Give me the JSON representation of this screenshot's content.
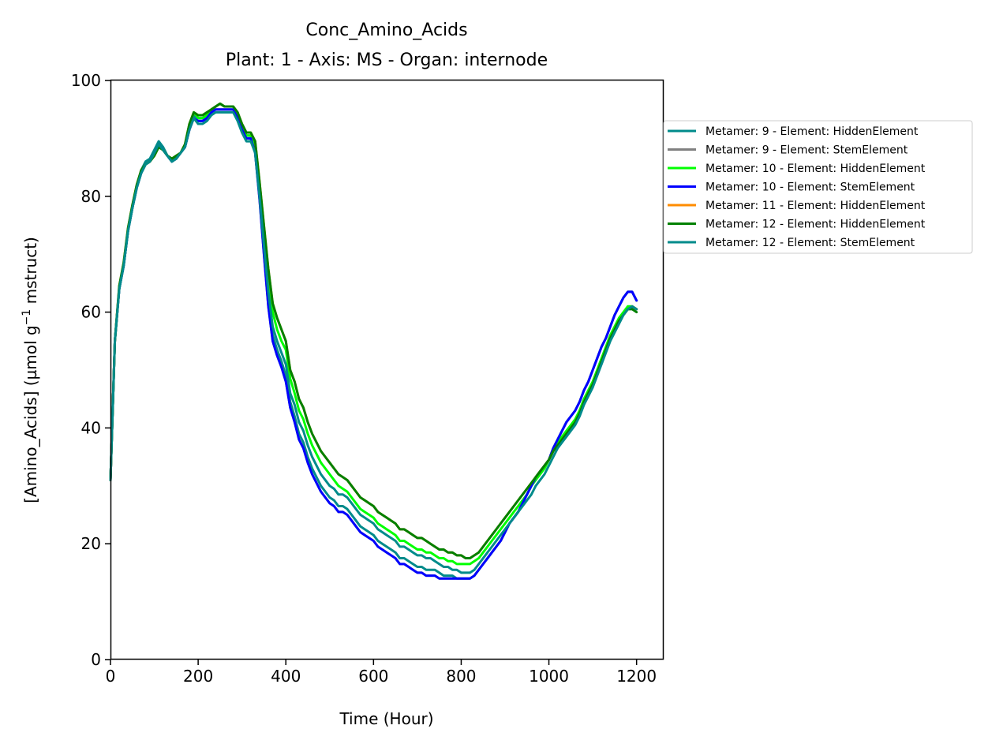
{
  "chart_data": {
    "type": "line",
    "title": "Conc_Amino_Acids",
    "subtitle": "Plant: 1 - Axis: MS - Organ: internode",
    "xlabel": "Time (Hour)",
    "ylabel_main": "[Amino_Acids] (µmol g",
    "ylabel_sup": "−1",
    "ylabel_tail": " mstruct)",
    "xlim": [
      0,
      1260
    ],
    "ylim": [
      0,
      100
    ],
    "xticks": [
      0,
      200,
      400,
      600,
      800,
      1000,
      1200
    ],
    "xtick_labels": [
      "0",
      "200",
      "400",
      "600",
      "800",
      "1000",
      "1200"
    ],
    "yticks": [
      0,
      20,
      40,
      60,
      80,
      100
    ],
    "ytick_labels": [
      "0",
      "20",
      "40",
      "60",
      "80",
      "100"
    ],
    "grid": false,
    "legend_position": "outside-right",
    "x": [
      0,
      10,
      20,
      30,
      40,
      50,
      60,
      70,
      80,
      90,
      100,
      110,
      120,
      130,
      140,
      150,
      160,
      170,
      180,
      190,
      200,
      210,
      220,
      230,
      240,
      250,
      260,
      270,
      280,
      290,
      300,
      310,
      320,
      330,
      340,
      350,
      360,
      370,
      380,
      390,
      400,
      410,
      420,
      430,
      440,
      450,
      460,
      470,
      480,
      490,
      500,
      510,
      520,
      530,
      540,
      550,
      560,
      570,
      580,
      590,
      600,
      610,
      620,
      630,
      640,
      650,
      660,
      670,
      680,
      690,
      700,
      710,
      720,
      730,
      740,
      750,
      760,
      770,
      780,
      790,
      800,
      810,
      820,
      830,
      840,
      850,
      860,
      870,
      880,
      890,
      900,
      910,
      920,
      930,
      940,
      950,
      960,
      970,
      980,
      990,
      1000,
      1010,
      1020,
      1030,
      1040,
      1050,
      1060,
      1070,
      1080,
      1090,
      1100,
      1110,
      1120,
      1130,
      1140,
      1150,
      1160,
      1170,
      1180,
      1190,
      1200
    ],
    "series": [
      {
        "name": "Metamer: 9 - Element: HiddenElement",
        "color": "#008B8B",
        "values": [
          31.0,
          55.0,
          64.0,
          68.0,
          74.0,
          78.0,
          81.5,
          84.5,
          86.0,
          86.5,
          88.0,
          89.5,
          88.5,
          87.0,
          86.0,
          86.5,
          87.5,
          88.5,
          91.5,
          94.0,
          93.5,
          93.5,
          94.0,
          95.0,
          95.5,
          96.0,
          95.5,
          95.5,
          95.5,
          94.0,
          92.0,
          90.5,
          90.5,
          88.0,
          80.0,
          71.0,
          62.0,
          56.0,
          53.5,
          51.5,
          49.0,
          44.5,
          42.0,
          39.0,
          37.5,
          35.0,
          33.0,
          31.5,
          30.0,
          29.0,
          28.0,
          27.5,
          26.5,
          26.5,
          26.0,
          25.0,
          24.0,
          23.0,
          22.5,
          22.0,
          21.5,
          20.5,
          20.0,
          19.5,
          19.0,
          18.5,
          17.5,
          17.5,
          17.0,
          16.5,
          16.0,
          16.0,
          15.5,
          15.5,
          15.5,
          15.0,
          14.5,
          14.5,
          14.5,
          14.0,
          14.0,
          14.0,
          14.0,
          14.5,
          15.5,
          16.5,
          17.5,
          18.5,
          19.5,
          20.5,
          22.0,
          23.5,
          24.5,
          25.5,
          27.0,
          28.5,
          30.0,
          31.5,
          32.5,
          33.5,
          34.5,
          36.5,
          38.0,
          39.5,
          41.0,
          42.0,
          43.0,
          44.5,
          46.5,
          48.0,
          50.0,
          52.0,
          54.0,
          55.5,
          57.5,
          59.5,
          61.0,
          62.5,
          63.5,
          63.5,
          62.0
        ]
      },
      {
        "name": "Metamer: 9 - Element: StemElement",
        "color": "#808080",
        "values": [
          31.0,
          55.0,
          64.0,
          68.0,
          74.0,
          78.0,
          81.5,
          84.0,
          85.5,
          86.0,
          87.5,
          89.0,
          88.0,
          87.0,
          86.0,
          86.5,
          87.5,
          88.5,
          91.5,
          93.5,
          93.0,
          93.0,
          93.5,
          94.5,
          95.0,
          95.0,
          95.0,
          95.0,
          95.0,
          93.5,
          91.5,
          90.0,
          90.0,
          87.5,
          79.5,
          70.0,
          61.0,
          55.0,
          52.5,
          50.5,
          48.0,
          43.5,
          41.0,
          38.0,
          36.5,
          34.0,
          32.0,
          30.5,
          29.0,
          28.0,
          27.0,
          26.5,
          25.5,
          25.5,
          25.0,
          24.0,
          23.0,
          22.0,
          21.5,
          21.0,
          20.5,
          19.5,
          19.0,
          18.5,
          18.0,
          17.5,
          16.5,
          16.5,
          16.0,
          15.5,
          15.0,
          15.0,
          14.5,
          14.5,
          14.5,
          14.0,
          14.0,
          14.0,
          14.0,
          14.0,
          14.0,
          14.0,
          14.0,
          14.5,
          15.5,
          16.5,
          17.5,
          18.5,
          19.5,
          20.5,
          22.0,
          23.5,
          24.5,
          25.5,
          27.0,
          28.5,
          30.0,
          31.5,
          32.5,
          33.5,
          34.5,
          36.5,
          38.0,
          39.5,
          41.0,
          42.0,
          43.0,
          44.5,
          46.5,
          48.0,
          50.0,
          52.0,
          54.0,
          55.5,
          57.5,
          59.5,
          61.0,
          62.5,
          63.5,
          63.5,
          62.0
        ]
      },
      {
        "name": "Metamer: 10 - Element: HiddenElement",
        "color": "#00FF00",
        "values": [
          31.0,
          55.0,
          64.0,
          68.0,
          74.0,
          78.0,
          81.5,
          84.0,
          85.5,
          86.0,
          87.5,
          89.0,
          88.0,
          87.0,
          86.0,
          86.5,
          87.5,
          88.5,
          92.0,
          94.5,
          93.5,
          93.5,
          94.0,
          95.0,
          95.5,
          96.0,
          95.5,
          95.5,
          95.5,
          94.0,
          92.0,
          90.5,
          90.5,
          88.5,
          81.5,
          73.5,
          66.0,
          60.0,
          57.0,
          55.0,
          53.5,
          48.5,
          46.0,
          43.0,
          41.5,
          39.0,
          37.0,
          35.5,
          34.0,
          33.0,
          32.0,
          31.0,
          30.0,
          29.5,
          29.0,
          28.0,
          27.0,
          26.0,
          25.5,
          25.0,
          24.5,
          23.5,
          23.0,
          22.5,
          22.0,
          21.5,
          20.5,
          20.5,
          20.0,
          19.5,
          19.0,
          19.0,
          18.5,
          18.5,
          18.0,
          17.5,
          17.5,
          17.0,
          17.0,
          16.5,
          16.5,
          16.5,
          16.5,
          17.0,
          17.5,
          18.5,
          19.5,
          20.5,
          21.5,
          22.5,
          23.5,
          24.5,
          25.5,
          26.5,
          27.5,
          28.5,
          30.0,
          31.0,
          32.0,
          33.0,
          34.5,
          36.0,
          37.5,
          38.5,
          39.5,
          40.5,
          41.5,
          43.0,
          45.0,
          46.5,
          48.0,
          50.0,
          52.0,
          54.0,
          56.0,
          57.5,
          59.0,
          60.0,
          61.0,
          61.0,
          60.5
        ]
      },
      {
        "name": "Metamer: 10 - Element: StemElement",
        "color": "#0000FF",
        "values": [
          31.0,
          55.0,
          64.0,
          68.0,
          74.0,
          78.0,
          81.5,
          84.0,
          85.5,
          86.0,
          87.5,
          89.0,
          88.0,
          87.0,
          86.0,
          86.5,
          87.5,
          88.5,
          91.5,
          93.5,
          93.0,
          93.0,
          93.5,
          94.5,
          95.0,
          95.0,
          95.0,
          95.0,
          95.0,
          93.5,
          91.5,
          90.0,
          90.0,
          87.5,
          79.5,
          70.0,
          61.0,
          55.0,
          52.5,
          50.5,
          48.0,
          43.5,
          41.0,
          38.0,
          36.5,
          34.0,
          32.0,
          30.5,
          29.0,
          28.0,
          27.0,
          26.5,
          25.5,
          25.5,
          25.0,
          24.0,
          23.0,
          22.0,
          21.5,
          21.0,
          20.5,
          19.5,
          19.0,
          18.5,
          18.0,
          17.5,
          16.5,
          16.5,
          16.0,
          15.5,
          15.0,
          15.0,
          14.5,
          14.5,
          14.5,
          14.0,
          14.0,
          14.0,
          14.0,
          14.0,
          14.0,
          14.0,
          14.0,
          14.5,
          15.5,
          16.5,
          17.5,
          18.5,
          19.5,
          20.5,
          22.0,
          23.5,
          24.5,
          25.5,
          27.0,
          28.5,
          30.0,
          31.5,
          32.5,
          33.5,
          34.5,
          36.5,
          38.0,
          39.5,
          41.0,
          42.0,
          43.0,
          44.5,
          46.5,
          48.0,
          50.0,
          52.0,
          54.0,
          55.5,
          57.5,
          59.5,
          61.0,
          62.5,
          63.5,
          63.5,
          62.0
        ]
      },
      {
        "name": "Metamer: 11 - Element: HiddenElement",
        "color": "#FF8C00",
        "values": [
          31.0,
          55.0,
          64.5,
          68.5,
          74.5,
          78.5,
          82.0,
          84.5,
          85.5,
          86.0,
          87.0,
          88.5,
          88.0,
          87.0,
          86.5,
          87.0,
          87.5,
          89.0,
          92.5,
          94.5,
          94.0,
          94.0,
          94.5,
          95.0,
          95.5,
          96.0,
          95.5,
          95.5,
          95.5,
          94.5,
          92.5,
          91.0,
          91.0,
          89.5,
          82.5,
          75.0,
          67.5,
          61.5,
          59.0,
          57.0,
          55.0,
          50.0,
          48.0,
          45.0,
          43.5,
          41.0,
          39.0,
          37.5,
          36.0,
          35.0,
          34.0,
          33.0,
          32.0,
          31.5,
          31.0,
          30.0,
          29.0,
          28.0,
          27.5,
          27.0,
          26.5,
          25.5,
          25.0,
          24.5,
          24.0,
          23.5,
          22.5,
          22.5,
          22.0,
          21.5,
          21.0,
          21.0,
          20.5,
          20.0,
          19.5,
          19.0,
          19.0,
          18.5,
          18.5,
          18.0,
          18.0,
          17.5,
          17.5,
          18.0,
          18.5,
          19.5,
          20.5,
          21.5,
          22.5,
          23.5,
          24.5,
          25.5,
          26.5,
          27.5,
          28.5,
          29.5,
          30.5,
          31.5,
          32.5,
          33.5,
          34.5,
          36.0,
          37.0,
          38.0,
          39.0,
          40.0,
          41.0,
          42.5,
          44.5,
          46.0,
          47.5,
          49.5,
          51.5,
          53.5,
          55.5,
          57.0,
          58.5,
          59.5,
          60.5,
          61.0,
          60.5
        ]
      },
      {
        "name": "Metamer: 12 - Element: HiddenElement",
        "color": "#008000",
        "values": [
          31.0,
          55.0,
          64.5,
          68.5,
          74.5,
          78.5,
          82.0,
          84.5,
          85.5,
          86.0,
          87.0,
          88.5,
          88.0,
          87.0,
          86.5,
          87.0,
          87.5,
          89.0,
          92.5,
          94.5,
          94.0,
          94.0,
          94.5,
          95.0,
          95.5,
          96.0,
          95.5,
          95.5,
          95.5,
          94.5,
          92.5,
          91.0,
          91.0,
          89.5,
          82.5,
          75.0,
          67.5,
          61.5,
          59.0,
          57.0,
          55.0,
          50.0,
          48.0,
          45.0,
          43.5,
          41.0,
          39.0,
          37.5,
          36.0,
          35.0,
          34.0,
          33.0,
          32.0,
          31.5,
          31.0,
          30.0,
          29.0,
          28.0,
          27.5,
          27.0,
          26.5,
          25.5,
          25.0,
          24.5,
          24.0,
          23.5,
          22.5,
          22.5,
          22.0,
          21.5,
          21.0,
          21.0,
          20.5,
          20.0,
          19.5,
          19.0,
          19.0,
          18.5,
          18.5,
          18.0,
          18.0,
          17.5,
          17.5,
          18.0,
          18.5,
          19.5,
          20.5,
          21.5,
          22.5,
          23.5,
          24.5,
          25.5,
          26.5,
          27.5,
          28.5,
          29.5,
          30.5,
          31.5,
          32.5,
          33.5,
          34.5,
          36.0,
          37.0,
          38.0,
          39.0,
          40.0,
          41.0,
          42.5,
          44.5,
          46.0,
          47.5,
          49.5,
          51.5,
          53.5,
          55.5,
          57.0,
          58.5,
          59.5,
          60.5,
          60.5,
          60.0
        ]
      },
      {
        "name": "Metamer: 12 - Element: StemElement",
        "color": "#008B8B",
        "values": [
          31.0,
          55.0,
          64.0,
          68.0,
          74.0,
          78.0,
          81.5,
          84.0,
          85.5,
          86.0,
          87.5,
          89.0,
          88.0,
          87.0,
          86.0,
          86.5,
          87.5,
          88.5,
          91.5,
          93.5,
          92.5,
          92.5,
          93.0,
          94.0,
          94.5,
          94.5,
          94.5,
          94.5,
          94.5,
          93.0,
          91.0,
          89.5,
          89.5,
          87.5,
          80.0,
          71.5,
          63.5,
          57.5,
          55.0,
          53.0,
          51.0,
          46.0,
          44.0,
          41.0,
          39.5,
          37.0,
          35.0,
          33.5,
          32.0,
          31.0,
          30.0,
          29.5,
          28.5,
          28.5,
          28.0,
          27.0,
          26.0,
          25.0,
          24.5,
          24.0,
          23.5,
          22.5,
          22.0,
          21.5,
          21.0,
          20.5,
          19.5,
          19.5,
          19.0,
          18.5,
          18.0,
          18.0,
          17.5,
          17.5,
          17.0,
          16.5,
          16.0,
          16.0,
          15.5,
          15.5,
          15.0,
          15.0,
          15.0,
          15.5,
          16.5,
          17.5,
          18.5,
          19.5,
          20.5,
          21.5,
          22.5,
          23.5,
          24.5,
          25.5,
          26.5,
          27.5,
          28.5,
          30.0,
          31.0,
          32.0,
          33.5,
          35.0,
          36.5,
          37.5,
          38.5,
          39.5,
          40.5,
          42.0,
          44.0,
          45.5,
          47.0,
          49.0,
          51.0,
          53.0,
          55.0,
          56.5,
          58.0,
          59.5,
          60.5,
          61.0,
          60.5
        ]
      }
    ]
  }
}
